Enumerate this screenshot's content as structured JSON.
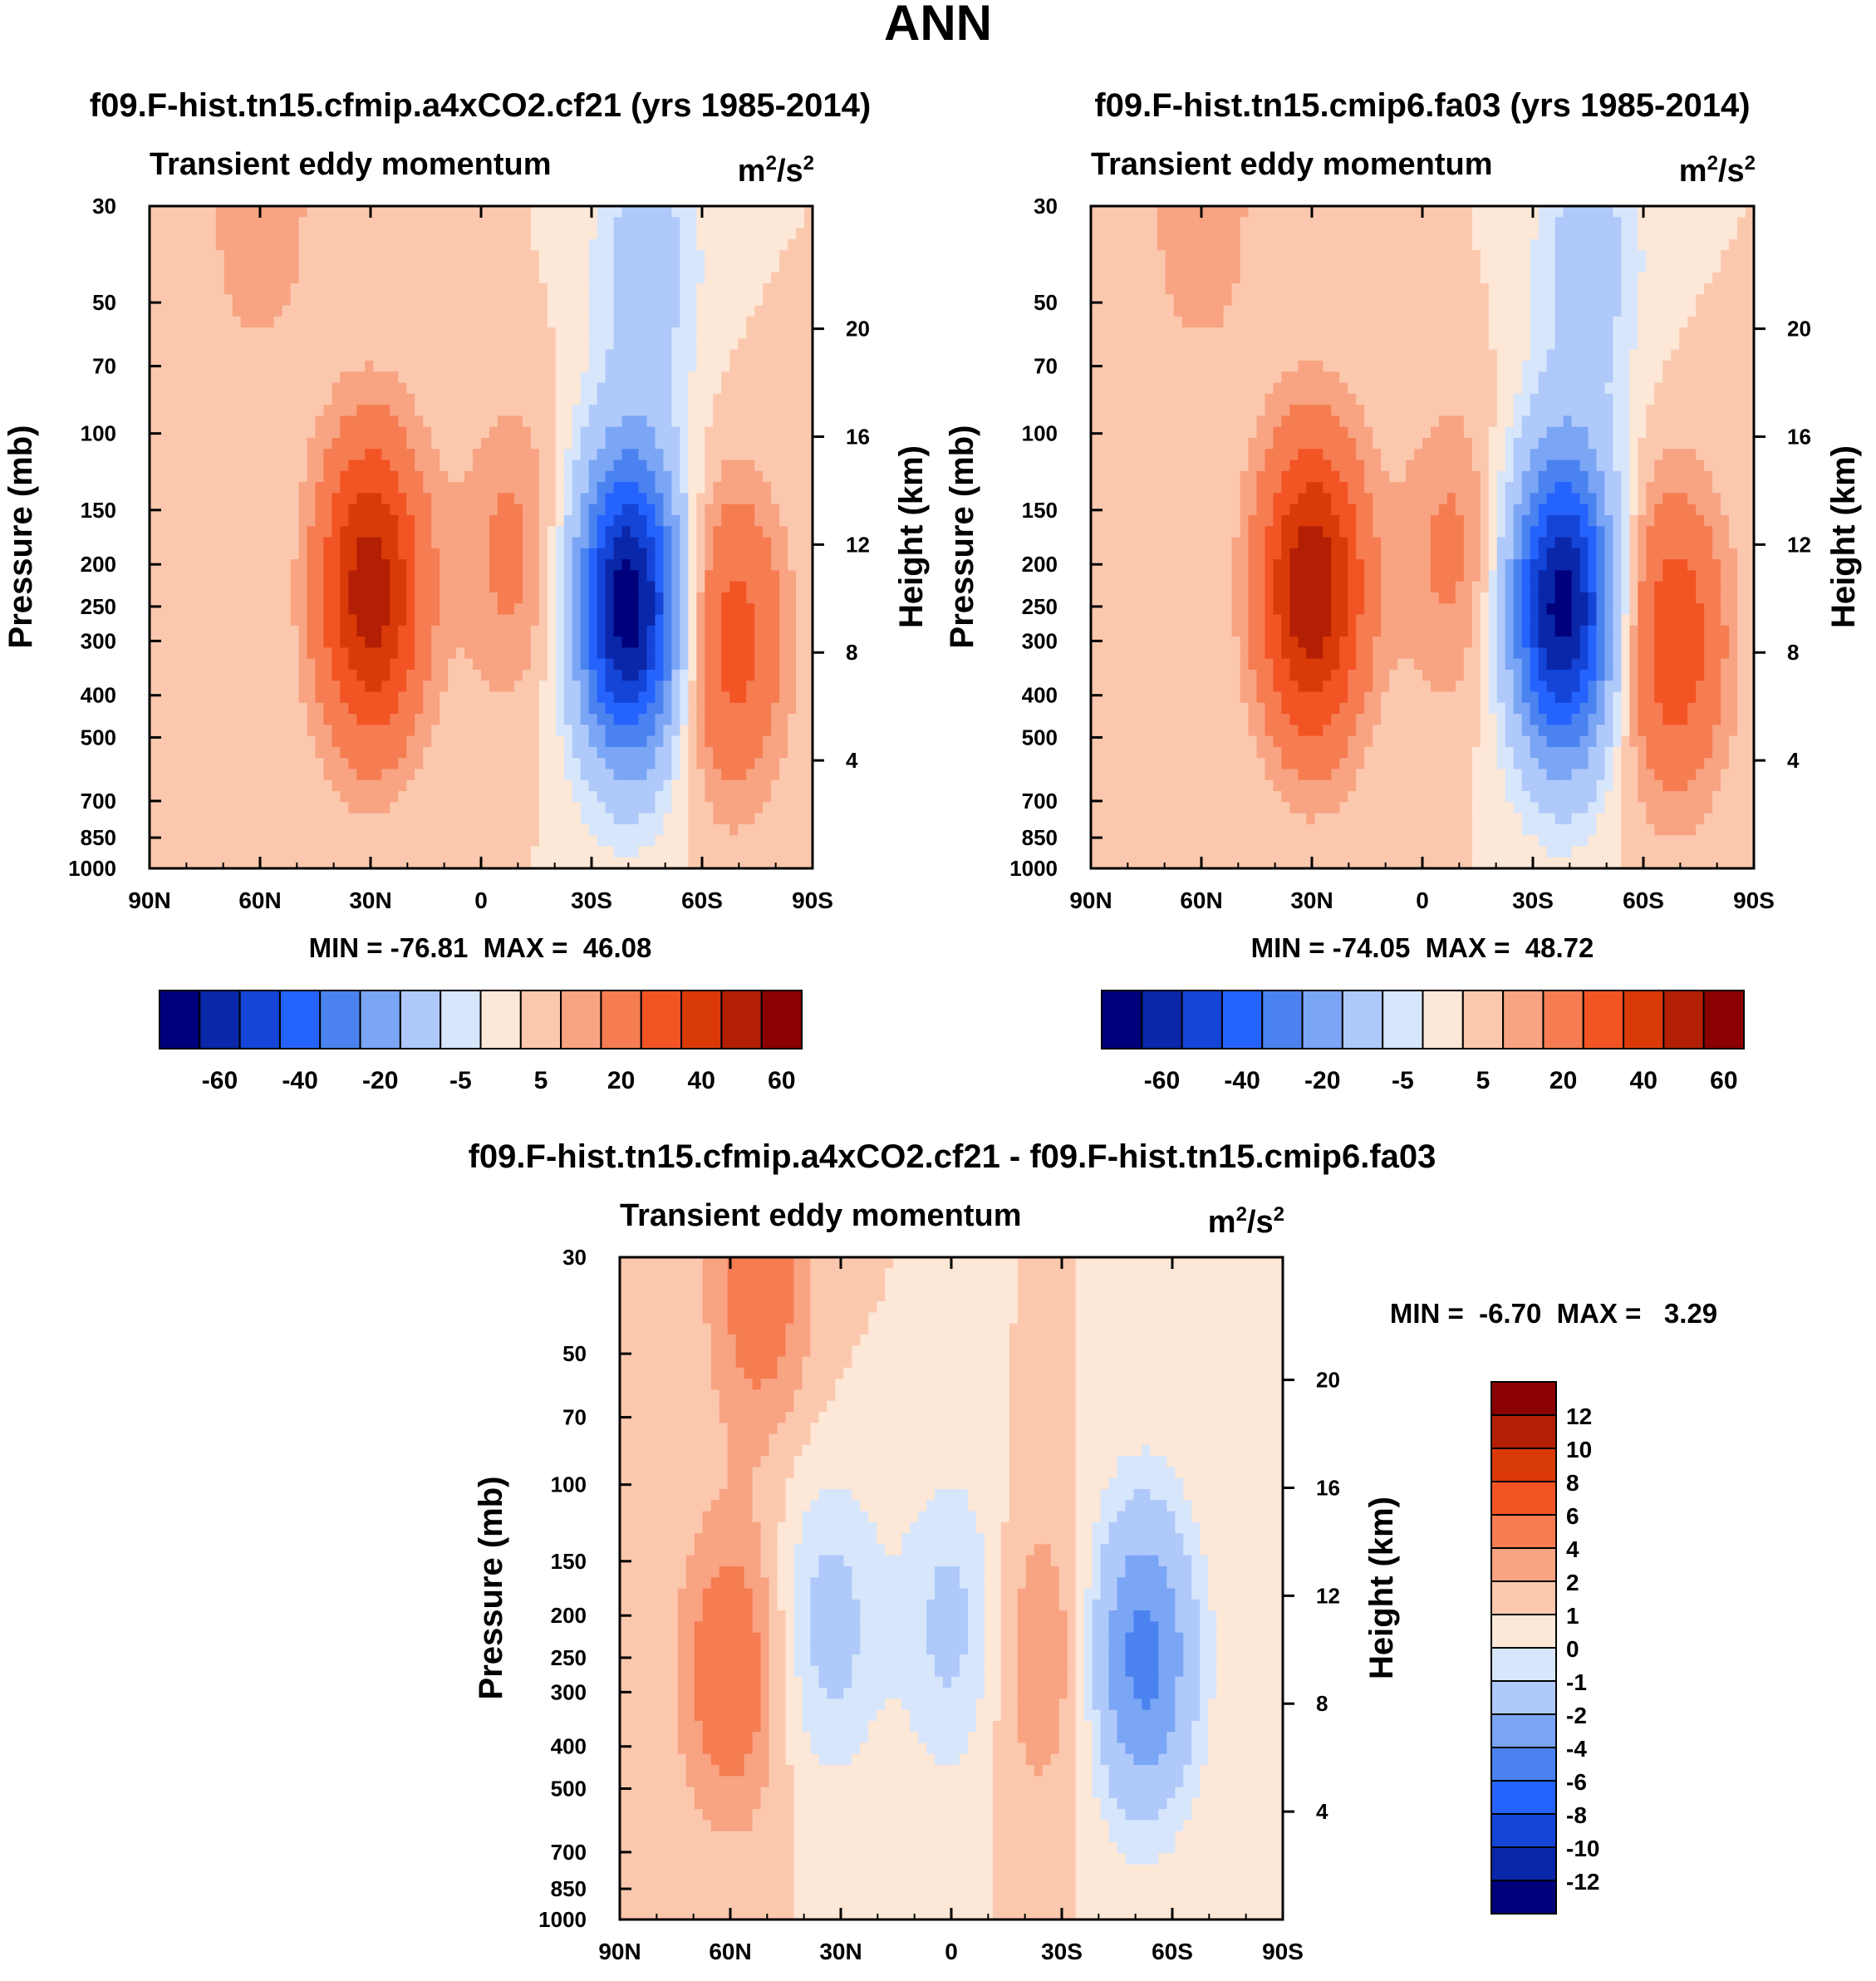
{
  "figure": {
    "title": "ANN"
  },
  "chart_data": [
    {
      "type": "heatmap",
      "panel": "top-left",
      "title": "f09.F-hist.tn15.cfmip.a4xCO2.cf21 (yrs 1985-2014)",
      "subtitle_left": "Transient eddy momentum",
      "units": [
        "m",
        "2",
        "/s",
        "2"
      ],
      "ylabel": "Pressure (mb)",
      "ylabel_right": "Height (km)",
      "x_ticks": [
        "90N",
        "60N",
        "30N",
        "0",
        "30S",
        "60S",
        "90S"
      ],
      "y_ticks": [
        "30",
        "50",
        "70",
        "100",
        "150",
        "200",
        "250",
        "300",
        "400",
        "500",
        "700",
        "850",
        "1000"
      ],
      "y_ticks_right": [
        "20",
        "16",
        "12",
        "8",
        "4"
      ],
      "stats": "MIN = -76.81  MAX =  46.08",
      "levels": [
        -70,
        -60,
        -50,
        -40,
        -30,
        -20,
        -10,
        -5,
        0,
        5,
        10,
        20,
        30,
        40,
        50,
        60,
        70
      ],
      "features": [
        {
          "lat": 30,
          "p": 230,
          "peak": 46.08
        },
        {
          "lat": -8,
          "p": 190,
          "peak": 12
        },
        {
          "lat": 60,
          "p": 30,
          "peak": 10
        },
        {
          "lat": -40,
          "p": 250,
          "peak": -76.81
        },
        {
          "lat": -68,
          "p": 300,
          "peak": 25
        },
        {
          "lat": -45,
          "p": 40,
          "peak": -15
        }
      ],
      "colorbar_labels": [
        "-60",
        "-40",
        "-20",
        "-5",
        "5",
        "20",
        "40",
        "60"
      ]
    },
    {
      "type": "heatmap",
      "panel": "top-right",
      "title": "f09.F-hist.tn15.cmip6.fa03 (yrs 1985-2014)",
      "subtitle_left": "Transient eddy momentum",
      "units": [
        "m",
        "2",
        "/s",
        "2"
      ],
      "ylabel": "Pressure (mb)",
      "ylabel_right": "Height (km)",
      "x_ticks": [
        "90N",
        "60N",
        "30N",
        "0",
        "30S",
        "60S",
        "90S"
      ],
      "y_ticks": [
        "30",
        "50",
        "70",
        "100",
        "150",
        "200",
        "250",
        "300",
        "400",
        "500",
        "700",
        "850",
        "1000"
      ],
      "y_ticks_right": [
        "20",
        "16",
        "12",
        "8",
        "4"
      ],
      "stats": "MIN = -74.05  MAX =  48.72",
      "levels": [
        -70,
        -60,
        -50,
        -40,
        -30,
        -20,
        -10,
        -5,
        0,
        5,
        10,
        20,
        30,
        40,
        50,
        60,
        70
      ],
      "features": [
        {
          "lat": 30,
          "p": 230,
          "peak": 48.72
        },
        {
          "lat": -8,
          "p": 190,
          "peak": 12
        },
        {
          "lat": 60,
          "p": 30,
          "peak": 10
        },
        {
          "lat": -38,
          "p": 250,
          "peak": -74.05
        },
        {
          "lat": -68,
          "p": 300,
          "peak": 28
        },
        {
          "lat": -45,
          "p": 40,
          "peak": -15
        }
      ],
      "colorbar_labels": [
        "-60",
        "-40",
        "-20",
        "-5",
        "5",
        "20",
        "40",
        "60"
      ]
    },
    {
      "type": "heatmap",
      "panel": "bottom",
      "title": "f09.F-hist.tn15.cfmip.a4xCO2.cf21 - f09.F-hist.tn15.cmip6.fa03",
      "subtitle_left": "Transient eddy momentum",
      "units": [
        "m",
        "2",
        "/s",
        "2"
      ],
      "ylabel": "Pressure (mb)",
      "ylabel_right": "Height (km)",
      "x_ticks": [
        "90N",
        "60N",
        "30N",
        "0",
        "30S",
        "60S",
        "90S"
      ],
      "y_ticks": [
        "30",
        "50",
        "70",
        "100",
        "150",
        "200",
        "250",
        "300",
        "400",
        "500",
        "700",
        "850",
        "1000"
      ],
      "y_ticks_right": [
        "20",
        "16",
        "12",
        "8",
        "4"
      ],
      "stats": "MIN =  -6.70  MAX =   3.29",
      "levels": [
        -14,
        -12,
        -10,
        -8,
        -6,
        -4,
        -2,
        -1,
        0,
        1,
        2,
        4,
        6,
        8,
        10,
        12,
        14
      ],
      "features": [
        {
          "lat": 60,
          "p": 270,
          "peak": 3.29
        },
        {
          "lat": 52,
          "p": 35,
          "peak": 3
        },
        {
          "lat": 33,
          "p": 210,
          "peak": -2.6
        },
        {
          "lat": 0,
          "p": 210,
          "peak": -2.4
        },
        {
          "lat": -52,
          "p": 250,
          "peak": -6.7
        },
        {
          "lat": -25,
          "p": 250,
          "peak": 2
        }
      ],
      "colorbar_labels": [
        "12",
        "10",
        "8",
        "6",
        "4",
        "2",
        "1",
        "0",
        "-1",
        "-2",
        "-4",
        "-6",
        "-8",
        "-10",
        "-12"
      ]
    }
  ],
  "colors": {
    "palette": [
      "#00007d",
      "#0a26a9",
      "#1445d7",
      "#2563ff",
      "#4a83f0",
      "#7ba5f5",
      "#afc9fa",
      "#d7e6fb",
      "#fde7d6",
      "#fbc8ae",
      "#f8a382",
      "#f67c52",
      "#f35424",
      "#da3a08",
      "#b31f04",
      "#8b0000"
    ]
  }
}
